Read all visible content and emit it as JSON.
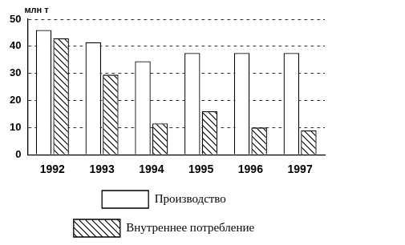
{
  "chart_data": {
    "type": "bar",
    "ylabel": "млн т",
    "categories": [
      "1992",
      "1993",
      "1994",
      "1995",
      "1996",
      "1997"
    ],
    "series": [
      {
        "name": "Производство",
        "color": "#ffffff",
        "values": [
          46,
          41.5,
          34.5,
          37.5,
          37.5,
          37.5
        ]
      },
      {
        "name": "Внутреннее потребление",
        "color": "#000000",
        "values": [
          43,
          29.5,
          11.5,
          16,
          10,
          9
        ]
      }
    ],
    "ylim": [
      0,
      50
    ],
    "yticks": [
      0,
      10,
      20,
      30,
      40,
      50
    ],
    "grid": true,
    "legend": "bottom"
  }
}
